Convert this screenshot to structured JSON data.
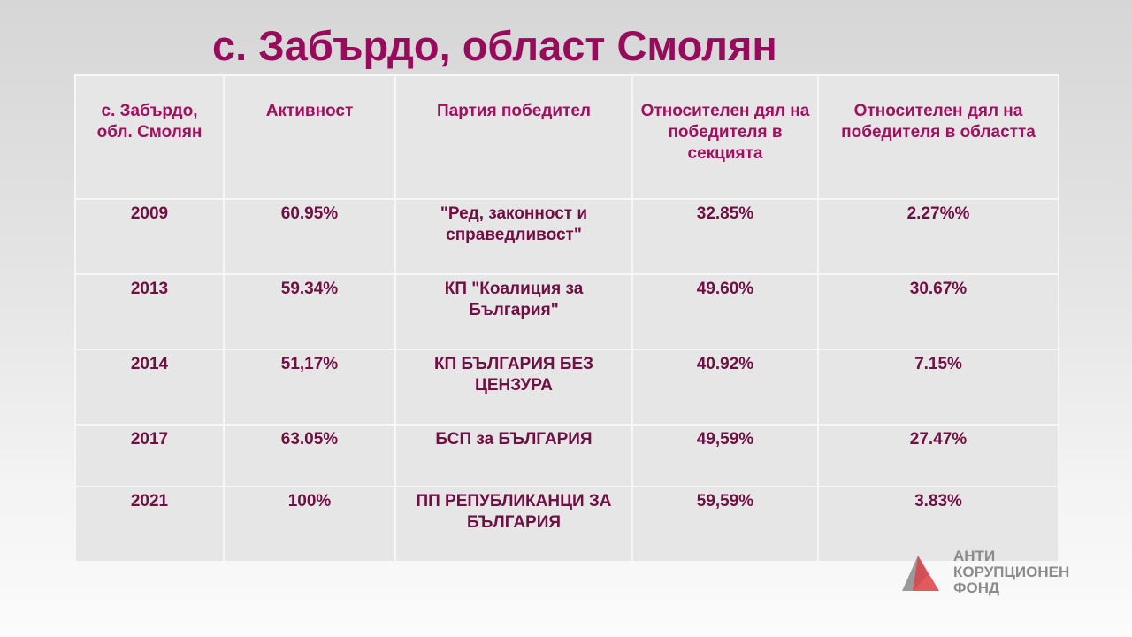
{
  "page": {
    "title": "с. Забърдо, област Смолян"
  },
  "table": {
    "headers": [
      "с. Забърдо, обл. Смолян",
      "Активност",
      "Партия победител",
      "Относителен дял на победителя в секцията",
      "Относителен дял на победителя в областта"
    ],
    "rows": [
      [
        "2009",
        "60.95%",
        "\"Ред, законност и справедливост\"",
        "32.85%",
        "2.27%%"
      ],
      [
        "2013",
        "59.34%",
        "КП \"Коалиция за България\"",
        "49.60%",
        "30.67%"
      ],
      [
        "2014",
        "51,17%",
        "КП БЪЛГАРИЯ БЕЗ ЦЕНЗУРА",
        "40.92%",
        "7.15%"
      ],
      [
        "2017",
        "63.05%",
        "БСП за БЪЛГАРИЯ",
        "49,59%",
        "27.47%"
      ],
      [
        "2021",
        "100%",
        "ПП РЕПУБЛИКАНЦИ ЗА БЪЛГАРИЯ",
        "59,59%",
        "3.83%"
      ]
    ]
  },
  "logo": {
    "line1": "АНТИ",
    "line2": "КОРУПЦИОНЕН",
    "line3": "ФОНД",
    "colors": {
      "accent": "#e05a5e",
      "gray": "#8b8b8b"
    }
  },
  "colors": {
    "title": "#980a5c",
    "header_text": "#a0105e",
    "cell_text": "#6f0f43"
  }
}
